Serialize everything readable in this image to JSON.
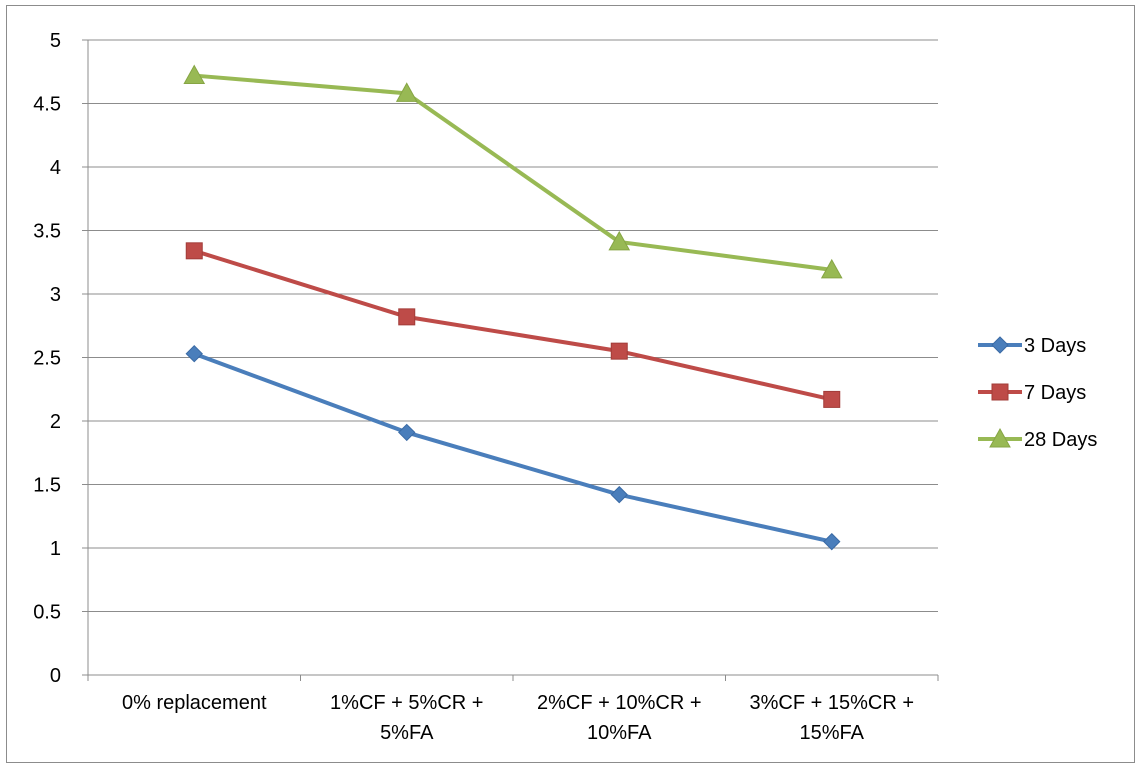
{
  "chart_data": {
    "type": "line",
    "title": "",
    "xlabel": "",
    "ylabel": "",
    "categories": [
      [
        "0% replacement"
      ],
      [
        "1%CF + 5%CR +",
        "5%FA"
      ],
      [
        "2%CF + 10%CR +",
        "10%FA"
      ],
      [
        "3%CF + 15%CR +",
        "15%FA"
      ]
    ],
    "ylim": [
      0,
      5
    ],
    "yticks": [
      "0",
      "0.5",
      "1",
      "1.5",
      "2",
      "2.5",
      "3",
      "3.5",
      "4",
      "4.5",
      "5"
    ],
    "grid": true,
    "legend_position": "right",
    "series": [
      {
        "name": "3 Days",
        "values": [
          2.53,
          1.91,
          1.42,
          1.05
        ],
        "color": "#4a7ebb",
        "marker": "diamond"
      },
      {
        "name": "7 Days",
        "values": [
          3.34,
          2.82,
          2.55,
          2.17
        ],
        "color": "#be4b48",
        "marker": "square"
      },
      {
        "name": "28 Days",
        "values": [
          4.72,
          4.58,
          3.41,
          3.19
        ],
        "color": "#98b954",
        "marker": "triangle"
      }
    ]
  }
}
